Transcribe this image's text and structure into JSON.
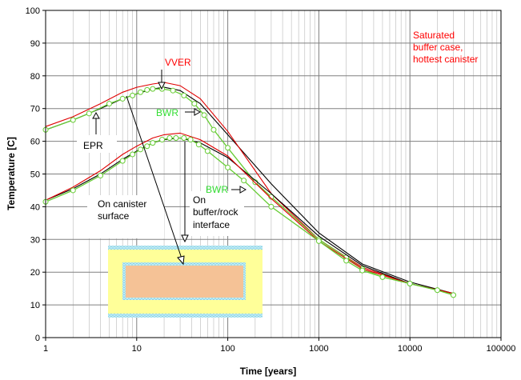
{
  "chart_data": {
    "type": "line",
    "xlabel": "Time [years]",
    "ylabel": "Temperature [C]",
    "xscale": "log",
    "xlim": [
      1,
      100000
    ],
    "ylim": [
      0,
      100
    ],
    "x_ticks": [
      "1",
      "10",
      "100",
      "1000",
      "10000",
      "100000"
    ],
    "y_ticks": [
      "0",
      "10",
      "20",
      "30",
      "40",
      "50",
      "60",
      "70",
      "80",
      "90",
      "100"
    ],
    "grid": true,
    "colors": {
      "VVER": "#e00000",
      "EPR": "#000000",
      "BWR": "#66cc33",
      "annotation_red": "#ff0000",
      "annotation_green": "#33dd33"
    },
    "series": [
      {
        "name": "EPR",
        "group": "canister surface",
        "color": "#000000",
        "marker": false,
        "x": [
          1,
          2,
          4,
          7,
          10,
          15,
          20,
          30,
          50,
          100,
          300,
          1000,
          3000,
          10000,
          30000
        ],
        "y": [
          63.5,
          66.5,
          70.0,
          73.0,
          74.5,
          76.0,
          76.5,
          75.5,
          71.5,
          62.0,
          47.0,
          32.0,
          22.5,
          17.0,
          13.5
        ]
      },
      {
        "name": "VVER",
        "group": "canister surface",
        "color": "#e00000",
        "marker": false,
        "x": [
          1,
          2,
          4,
          7,
          10,
          15,
          20,
          30,
          50,
          100,
          300,
          1000,
          3000,
          10000,
          30000
        ],
        "y": [
          64.5,
          67.5,
          71.5,
          75.0,
          76.5,
          77.5,
          78.0,
          77.0,
          73.0,
          63.0,
          44.0,
          30.0,
          21.5,
          16.5,
          13.5
        ]
      },
      {
        "name": "BWR",
        "group": "canister surface",
        "color": "#66cc33",
        "marker": true,
        "x": [
          1,
          2,
          3,
          5,
          7,
          9,
          11,
          13,
          15,
          19,
          25,
          33,
          43,
          55,
          70,
          100,
          200,
          300,
          1000,
          2000,
          3000,
          5000,
          10000,
          20000,
          30000
        ],
        "y": [
          63.5,
          66.5,
          68.5,
          71.5,
          73.0,
          74.0,
          75.0,
          75.7,
          76.0,
          76.0,
          75.5,
          74.0,
          71.5,
          68.0,
          63.5,
          58.0,
          47.5,
          43.0,
          30.0,
          24.5,
          21.0,
          18.5,
          16.5,
          14.5,
          13.0
        ]
      },
      {
        "name": "EPR",
        "group": "buffer/rock interface",
        "color": "#000000",
        "marker": false,
        "x": [
          1,
          2,
          4,
          7,
          10,
          15,
          20,
          30,
          50,
          100,
          300,
          1000,
          3000,
          10000,
          30000
        ],
        "y": [
          42.0,
          45.5,
          50.0,
          54.5,
          57.0,
          59.5,
          60.5,
          61.0,
          59.5,
          55.0,
          44.0,
          31.0,
          22.0,
          16.5,
          13.5
        ]
      },
      {
        "name": "VVER",
        "group": "buffer/rock interface",
        "color": "#e00000",
        "marker": false,
        "x": [
          1,
          2,
          4,
          7,
          10,
          15,
          20,
          30,
          50,
          100,
          300,
          1000,
          3000,
          10000,
          30000
        ],
        "y": [
          42.0,
          46.0,
          51.0,
          56.0,
          58.5,
          61.0,
          62.0,
          62.5,
          60.5,
          55.5,
          42.5,
          29.5,
          21.0,
          16.5,
          13.5
        ]
      },
      {
        "name": "BWR",
        "group": "buffer/rock interface",
        "color": "#66cc33",
        "marker": true,
        "x": [
          1,
          2,
          4,
          7,
          9,
          11,
          13,
          15,
          19,
          23,
          27,
          33,
          39,
          48,
          60,
          100,
          150,
          300,
          1000,
          2000,
          3000,
          5000,
          10000,
          20000,
          30000
        ],
        "y": [
          41.5,
          45.0,
          49.5,
          54.0,
          56.0,
          57.5,
          58.5,
          59.5,
          60.5,
          61.0,
          61.0,
          61.0,
          60.5,
          59.0,
          57.0,
          52.0,
          48.0,
          40.0,
          29.5,
          23.5,
          20.5,
          18.5,
          16.5,
          14.5,
          13.0
        ]
      }
    ],
    "annotations": [
      {
        "text": "Saturated",
        "color": "#ff0000"
      },
      {
        "text": "buffer case,",
        "color": "#ff0000"
      },
      {
        "text": "hottest canister",
        "color": "#ff0000"
      },
      {
        "text": "VVER",
        "color": "#ff0000"
      },
      {
        "text": "BWR",
        "color": "#33dd33"
      },
      {
        "text": "EPR",
        "color": "#000000"
      },
      {
        "text": "BWR",
        "color": "#33dd33"
      },
      {
        "text": "On canister",
        "color": "#000000"
      },
      {
        "text": "surface",
        "color": "#000000"
      },
      {
        "text": "On",
        "color": "#000000"
      },
      {
        "text": "buffer/rock",
        "color": "#000000"
      },
      {
        "text": "interface",
        "color": "#000000"
      }
    ]
  }
}
